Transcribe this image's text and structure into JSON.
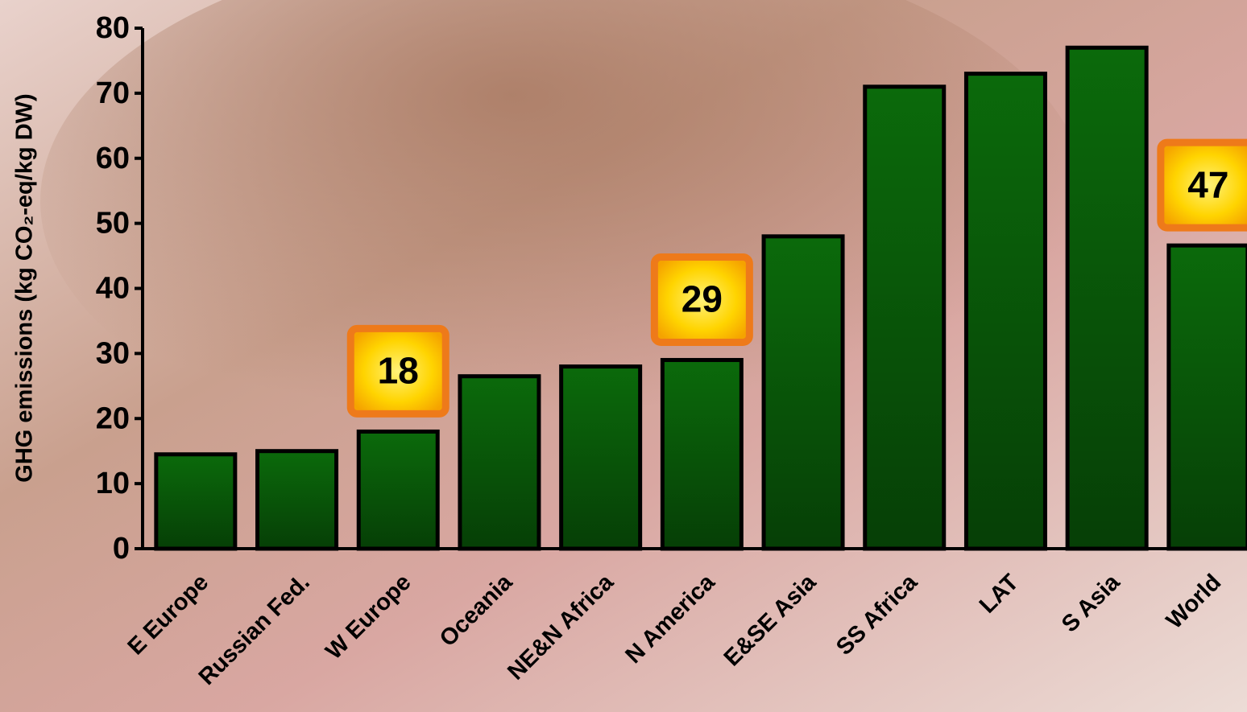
{
  "chart_data": {
    "type": "bar",
    "y_label": "GHG emissions (kg CO₂-eq/kg DW)",
    "categories": [
      "E Europe",
      "Russian Fed.",
      "W Europe",
      "Oceania",
      "NE&N Africa",
      "N America",
      "E&SE Asia",
      "SS Africa",
      "LAT",
      "S Asia",
      "World"
    ],
    "values": [
      14.5,
      15,
      18,
      26.5,
      28,
      29,
      48,
      71,
      73,
      77,
      46.6
    ],
    "value_labels": [
      null,
      null,
      "18",
      null,
      null,
      "29",
      null,
      null,
      null,
      null,
      "47"
    ],
    "color": "#0a5c0a",
    "ylim": [
      0,
      80
    ],
    "yticks": [
      0,
      10,
      20,
      30,
      40,
      50,
      60,
      70,
      80
    ],
    "grid": false
  }
}
